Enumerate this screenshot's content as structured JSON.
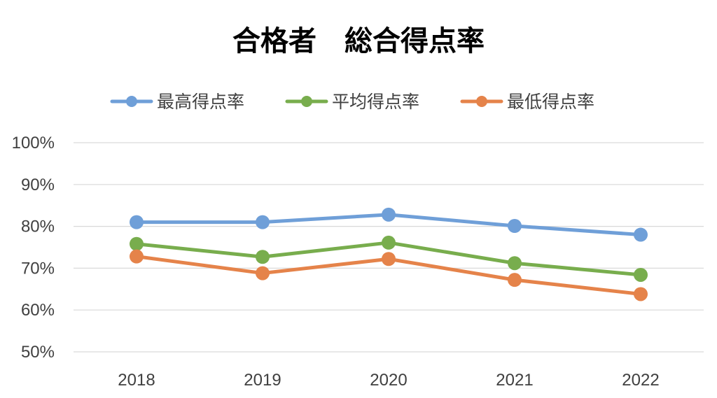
{
  "chart_data": {
    "type": "line",
    "title": "合格者　総合得点率",
    "categories": [
      "2018",
      "2019",
      "2020",
      "2021",
      "2022"
    ],
    "y_ticks": [
      "50%",
      "60%",
      "70%",
      "80%",
      "90%",
      "100%"
    ],
    "ylim": [
      50,
      100
    ],
    "grid": true,
    "legend_position": "top",
    "series": [
      {
        "name": "最高得点率",
        "color": "#6f9fd8",
        "values": [
          81.0,
          81.0,
          82.8,
          80.1,
          78.0
        ]
      },
      {
        "name": "平均得点率",
        "color": "#78ad4d",
        "values": [
          75.8,
          72.7,
          76.1,
          71.2,
          68.4
        ]
      },
      {
        "name": "最低得点率",
        "color": "#e5834a",
        "values": [
          72.8,
          68.8,
          72.2,
          67.2,
          63.8
        ]
      }
    ]
  }
}
